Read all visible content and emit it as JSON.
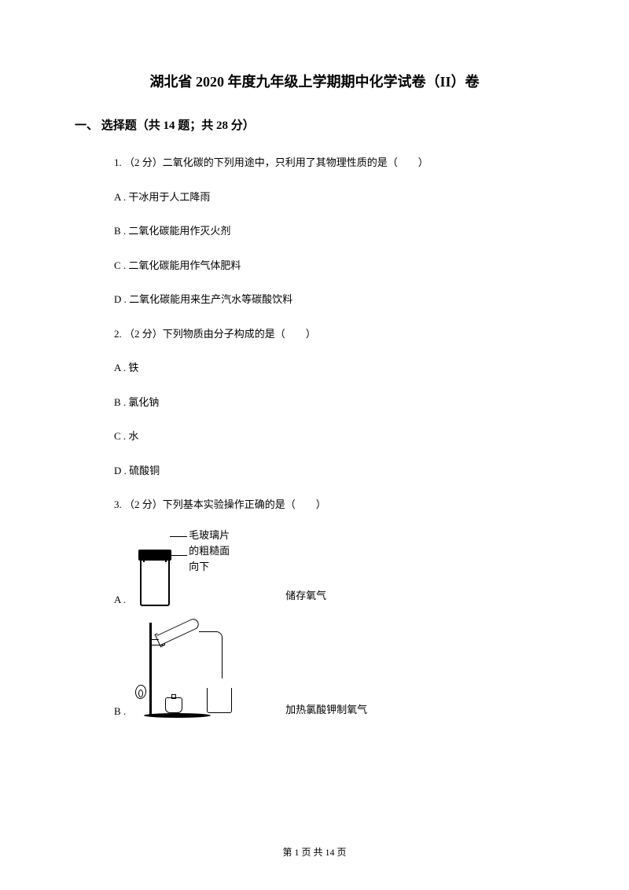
{
  "title": "湖北省 2020 年度九年级上学期期中化学试卷（II）卷",
  "section1": {
    "header": "一、 选择题（共 14 题；共 28 分）"
  },
  "q1": {
    "text": "1. （2 分）二氧化碳的下列用途中，只利用了其物理性质的是（　　）",
    "optA": "A . 干冰用于人工降雨",
    "optB": "B . 二氧化碳能用作灭火剂",
    "optC": "C . 二氧化碳能用作气体肥料",
    "optD": "D . 二氧化碳能用来生产汽水等碳酸饮料"
  },
  "q2": {
    "text": "2. （2 分）下列物质由分子构成的是（　　）",
    "optA": "A . 铁",
    "optB": "B . 氯化钠",
    "optC": "C . 水",
    "optD": "D . 硫酸铜"
  },
  "q3": {
    "text": "3. （2 分）下列基本实验操作正确的是（　　）",
    "diagA": {
      "ann1": "毛玻璃片",
      "ann2": "的粗糙面",
      "ann3": "向下"
    },
    "optA_label": "A .",
    "optA_text": "储存氧气",
    "optB_label": "B .",
    "optB_text": "加热氯酸钾制氧气"
  },
  "footer": "第 1 页 共 14 页"
}
